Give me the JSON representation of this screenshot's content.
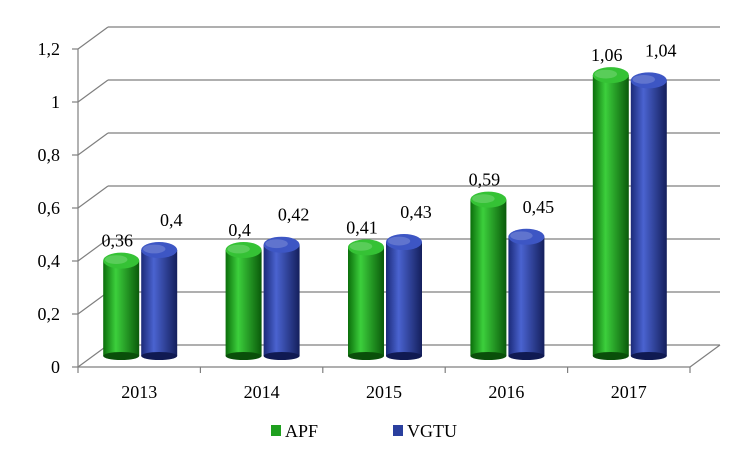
{
  "chart_data": {
    "type": "bar",
    "categories": [
      "2013",
      "2014",
      "2015",
      "2016",
      "2017"
    ],
    "series": [
      {
        "name": "APF",
        "values": [
          0.36,
          0.4,
          0.41,
          0.59,
          1.06
        ],
        "labels": [
          "0,36",
          "0,4",
          "0,41",
          "0,59",
          "1,06"
        ],
        "color": "#1f9e1f"
      },
      {
        "name": "VGTU",
        "values": [
          0.4,
          0.42,
          0.43,
          0.45,
          1.04
        ],
        "labels": [
          "0,4",
          "0,42",
          "0,43",
          "0,45",
          "1,04"
        ],
        "color": "#2a3f9e"
      }
    ],
    "yticks": [
      "0",
      "0,2",
      "0,4",
      "0,6",
      "0,8",
      "1",
      "1,2"
    ],
    "ylim": [
      0,
      1.2
    ],
    "grid": true,
    "legend_position": "bottom",
    "style": "3d-cylinder"
  }
}
